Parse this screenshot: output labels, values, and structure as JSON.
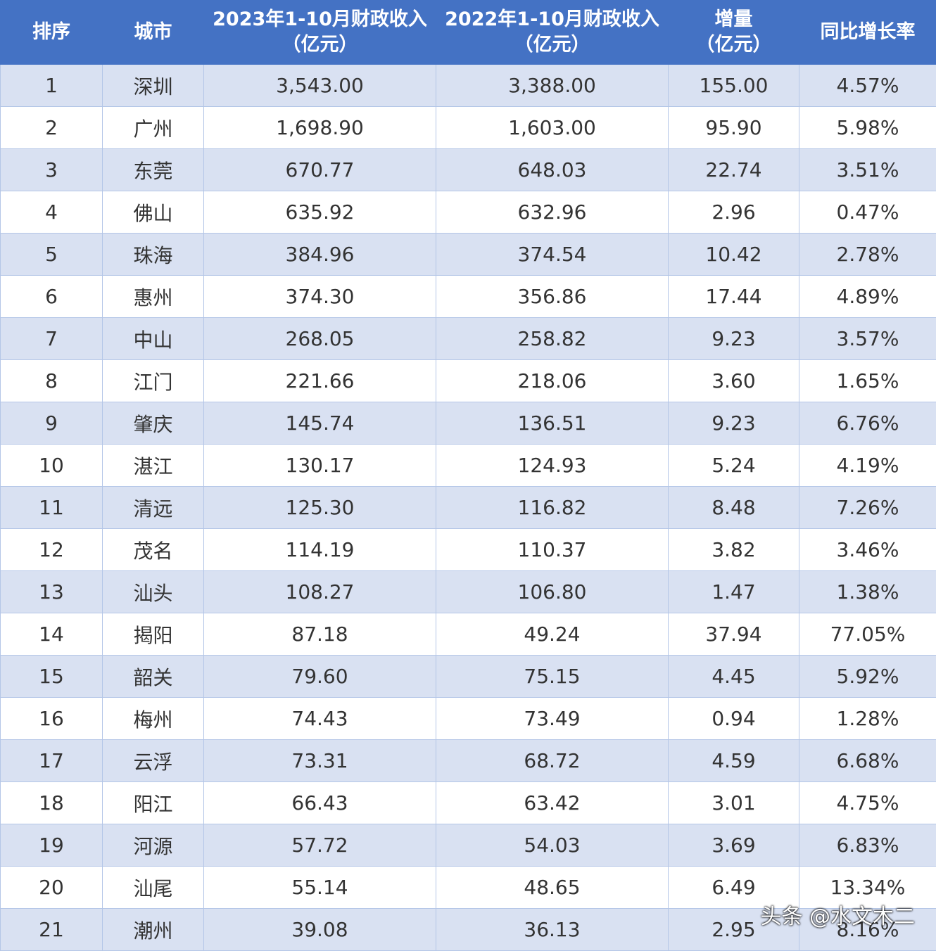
{
  "table": {
    "header": [
      [
        "排序"
      ],
      [
        "城市"
      ],
      [
        "2023年1-10月财政收入",
        "（亿元）"
      ],
      [
        "2022年1-10月财政收入",
        "（亿元）"
      ],
      [
        "增量",
        "（亿元）"
      ],
      [
        "同比增长率"
      ]
    ],
    "rows": [
      [
        "1",
        "深圳",
        "3,543.00",
        "3,388.00",
        "155.00",
        "4.57%"
      ],
      [
        "2",
        "广州",
        "1,698.90",
        "1,603.00",
        "95.90",
        "5.98%"
      ],
      [
        "3",
        "东莞",
        "670.77",
        "648.03",
        "22.74",
        "3.51%"
      ],
      [
        "4",
        "佛山",
        "635.92",
        "632.96",
        "2.96",
        "0.47%"
      ],
      [
        "5",
        "珠海",
        "384.96",
        "374.54",
        "10.42",
        "2.78%"
      ],
      [
        "6",
        "惠州",
        "374.30",
        "356.86",
        "17.44",
        "4.89%"
      ],
      [
        "7",
        "中山",
        "268.05",
        "258.82",
        "9.23",
        "3.57%"
      ],
      [
        "8",
        "江门",
        "221.66",
        "218.06",
        "3.60",
        "1.65%"
      ],
      [
        "9",
        "肇庆",
        "145.74",
        "136.51",
        "9.23",
        "6.76%"
      ],
      [
        "10",
        "湛江",
        "130.17",
        "124.93",
        "5.24",
        "4.19%"
      ],
      [
        "11",
        "清远",
        "125.30",
        "116.82",
        "8.48",
        "7.26%"
      ],
      [
        "12",
        "茂名",
        "114.19",
        "110.37",
        "3.82",
        "3.46%"
      ],
      [
        "13",
        "汕头",
        "108.27",
        "106.80",
        "1.47",
        "1.38%"
      ],
      [
        "14",
        "揭阳",
        "87.18",
        "49.24",
        "37.94",
        "77.05%"
      ],
      [
        "15",
        "韶关",
        "79.60",
        "75.15",
        "4.45",
        "5.92%"
      ],
      [
        "16",
        "梅州",
        "74.43",
        "73.49",
        "0.94",
        "1.28%"
      ],
      [
        "17",
        "云浮",
        "73.31",
        "68.72",
        "4.59",
        "6.68%"
      ],
      [
        "18",
        "阳江",
        "66.43",
        "63.42",
        "3.01",
        "4.75%"
      ],
      [
        "19",
        "河源",
        "57.72",
        "54.03",
        "3.69",
        "6.83%"
      ],
      [
        "20",
        "汕尾",
        "55.14",
        "48.65",
        "6.49",
        "13.34%"
      ],
      [
        "21",
        "潮州",
        "39.08",
        "36.13",
        "2.95",
        "8.16%"
      ]
    ]
  },
  "watermark": "头条 @水文木二"
}
